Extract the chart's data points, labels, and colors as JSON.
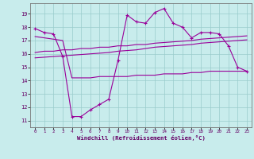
{
  "xlabel": "Windchill (Refroidissement éolien,°C)",
  "bg_color": "#c8ecec",
  "line_color": "#990099",
  "grid_color": "#99cccc",
  "ylim": [
    10.5,
    19.8
  ],
  "xlim": [
    -0.5,
    23.5
  ],
  "yticks": [
    11,
    12,
    13,
    14,
    15,
    16,
    17,
    18,
    19
  ],
  "xticks": [
    0,
    1,
    2,
    3,
    4,
    5,
    6,
    7,
    8,
    9,
    10,
    11,
    12,
    13,
    14,
    15,
    16,
    17,
    18,
    19,
    20,
    21,
    22,
    23
  ],
  "s1_x": [
    0,
    1,
    2,
    3,
    4,
    5,
    6,
    7,
    8,
    9,
    10,
    11,
    12,
    13,
    14,
    15,
    16,
    17,
    18,
    19,
    20,
    21,
    22,
    23
  ],
  "s1_y": [
    17.9,
    17.6,
    17.5,
    15.8,
    11.3,
    11.3,
    11.8,
    12.2,
    12.6,
    15.5,
    18.9,
    18.4,
    18.3,
    19.1,
    19.4,
    18.3,
    18.0,
    17.2,
    17.6,
    17.6,
    17.5,
    16.6,
    15.0,
    14.7
  ],
  "s2_x": [
    0,
    1,
    2,
    3,
    4,
    5,
    6,
    7,
    8,
    9,
    10,
    11,
    12,
    13,
    14,
    15,
    16,
    17,
    18,
    19,
    20,
    21,
    22,
    23
  ],
  "s2_y": [
    17.3,
    17.2,
    17.1,
    17.0,
    14.2,
    14.2,
    14.2,
    14.3,
    14.3,
    14.3,
    14.3,
    14.4,
    14.4,
    14.4,
    14.5,
    14.5,
    14.5,
    14.6,
    14.6,
    14.7,
    14.7,
    14.7,
    14.7,
    14.7
  ],
  "s3_x": [
    0,
    1,
    2,
    3,
    4,
    5,
    6,
    7,
    8,
    9,
    10,
    11,
    12,
    13,
    14,
    15,
    16,
    17,
    18,
    19,
    20,
    21,
    22,
    23
  ],
  "s3_y": [
    16.1,
    16.2,
    16.2,
    16.3,
    16.3,
    16.4,
    16.4,
    16.5,
    16.5,
    16.6,
    16.6,
    16.7,
    16.7,
    16.8,
    16.85,
    16.9,
    16.95,
    17.0,
    17.1,
    17.15,
    17.2,
    17.25,
    17.3,
    17.35
  ],
  "s4_x": [
    0,
    1,
    2,
    3,
    4,
    5,
    6,
    7,
    8,
    9,
    10,
    11,
    12,
    13,
    14,
    15,
    16,
    17,
    18,
    19,
    20,
    21,
    22,
    23
  ],
  "s4_y": [
    15.7,
    15.75,
    15.8,
    15.85,
    15.9,
    15.95,
    16.0,
    16.05,
    16.1,
    16.2,
    16.25,
    16.3,
    16.4,
    16.5,
    16.55,
    16.6,
    16.65,
    16.7,
    16.8,
    16.85,
    16.9,
    16.95,
    17.0,
    17.05
  ]
}
